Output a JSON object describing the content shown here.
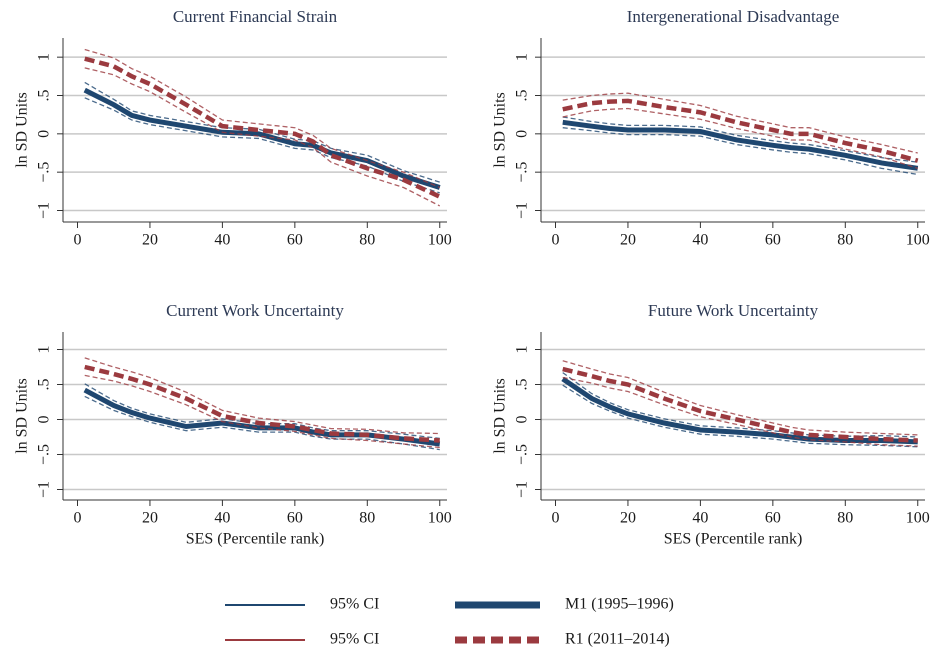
{
  "ci_label": "95% CI",
  "chart_data": [
    {
      "type": "line",
      "title": "Current Financial Strain",
      "ylabel": "ln SD Units",
      "x": [
        2,
        10,
        15,
        20,
        30,
        40,
        50,
        60,
        65,
        70,
        80,
        90,
        100
      ],
      "xlim": [
        -4,
        102
      ],
      "xticks": [
        0,
        20,
        40,
        60,
        80,
        100
      ],
      "ylim": [
        -1.15,
        1.25
      ],
      "yticks": [
        {
          "value": -1,
          "label": "−1"
        },
        {
          "value": -0.5,
          "label": "−.5"
        },
        0,
        {
          "value": 0.5,
          "label": ".5"
        },
        1
      ],
      "grid": true,
      "series": [
        {
          "name": "M1 (1995–1996)",
          "color": "#1f4770",
          "values": [
            0.57,
            0.38,
            0.24,
            0.18,
            0.1,
            0.02,
            0.0,
            -0.13,
            -0.15,
            -0.25,
            -0.35,
            -0.55,
            -0.7
          ],
          "lower": [
            0.47,
            0.31,
            0.18,
            0.12,
            0.04,
            -0.04,
            -0.06,
            -0.19,
            -0.21,
            -0.31,
            -0.42,
            -0.62,
            -0.77
          ],
          "upper": [
            0.67,
            0.45,
            0.3,
            0.24,
            0.16,
            0.08,
            0.06,
            -0.07,
            -0.09,
            -0.19,
            -0.28,
            -0.48,
            -0.63
          ]
        },
        {
          "name": "R1 (2011–2014)",
          "color": "#9b3a3f",
          "values": [
            0.98,
            0.88,
            0.75,
            0.65,
            0.38,
            0.1,
            0.05,
            0.0,
            -0.1,
            -0.28,
            -0.45,
            -0.6,
            -0.82
          ],
          "lower": [
            0.86,
            0.77,
            0.65,
            0.55,
            0.28,
            0.02,
            -0.03,
            -0.08,
            -0.18,
            -0.37,
            -0.55,
            -0.7,
            -0.94
          ],
          "upper": [
            1.1,
            0.99,
            0.85,
            0.75,
            0.48,
            0.18,
            0.13,
            0.08,
            -0.02,
            -0.19,
            -0.35,
            -0.5,
            -0.7
          ]
        }
      ]
    },
    {
      "type": "line",
      "title": "Intergenerational Disadvantage",
      "ylabel": "ln SD Units",
      "x": [
        2,
        10,
        15,
        20,
        30,
        40,
        50,
        60,
        65,
        70,
        80,
        90,
        100
      ],
      "xlim": [
        -4,
        102
      ],
      "xticks": [
        0,
        20,
        40,
        60,
        80,
        100
      ],
      "ylim": [
        -1.15,
        1.25
      ],
      "yticks": [
        {
          "value": -1,
          "label": "−1"
        },
        {
          "value": -0.5,
          "label": "−.5"
        },
        0,
        {
          "value": 0.5,
          "label": ".5"
        },
        1
      ],
      "grid": true,
      "series": [
        {
          "name": "M1 (1995–1996)",
          "color": "#1f4770",
          "values": [
            0.15,
            0.1,
            0.07,
            0.05,
            0.05,
            0.03,
            -0.08,
            -0.15,
            -0.18,
            -0.2,
            -0.28,
            -0.38,
            -0.45
          ],
          "lower": [
            0.08,
            0.04,
            0.01,
            -0.01,
            -0.01,
            -0.03,
            -0.14,
            -0.21,
            -0.24,
            -0.26,
            -0.34,
            -0.45,
            -0.53
          ],
          "upper": [
            0.22,
            0.16,
            0.13,
            0.11,
            0.11,
            0.09,
            -0.02,
            -0.09,
            -0.12,
            -0.14,
            -0.22,
            -0.31,
            -0.37
          ]
        },
        {
          "name": "R1 (2011–2014)",
          "color": "#9b3a3f",
          "values": [
            0.32,
            0.4,
            0.42,
            0.43,
            0.35,
            0.28,
            0.15,
            0.05,
            0.0,
            0.0,
            -0.12,
            -0.22,
            -0.35
          ],
          "lower": [
            0.22,
            0.3,
            0.32,
            0.33,
            0.26,
            0.19,
            0.07,
            -0.03,
            -0.08,
            -0.08,
            -0.2,
            -0.3,
            -0.45
          ],
          "upper": [
            0.44,
            0.5,
            0.52,
            0.53,
            0.45,
            0.37,
            0.23,
            0.13,
            0.08,
            0.08,
            -0.04,
            -0.14,
            -0.25
          ]
        }
      ]
    },
    {
      "type": "line",
      "title": "Current Work Uncertainty",
      "ylabel": "ln SD Units",
      "xlabel": "SES (Percentile rank)",
      "x": [
        2,
        10,
        15,
        20,
        30,
        40,
        50,
        60,
        65,
        70,
        80,
        90,
        100
      ],
      "xlim": [
        -4,
        102
      ],
      "xticks": [
        0,
        20,
        40,
        60,
        80,
        100
      ],
      "ylim": [
        -1.15,
        1.25
      ],
      "yticks": [
        {
          "value": -1,
          "label": "−1"
        },
        {
          "value": -0.5,
          "label": "−.5"
        },
        0,
        {
          "value": 0.5,
          "label": ".5"
        },
        1
      ],
      "grid": true,
      "series": [
        {
          "name": "M1 (1995–1996)",
          "color": "#1f4770",
          "values": [
            0.42,
            0.2,
            0.1,
            0.02,
            -0.1,
            -0.05,
            -0.12,
            -0.12,
            -0.18,
            -0.22,
            -0.22,
            -0.28,
            -0.35
          ],
          "lower": [
            0.33,
            0.13,
            0.04,
            -0.04,
            -0.16,
            -0.11,
            -0.18,
            -0.18,
            -0.24,
            -0.28,
            -0.28,
            -0.35,
            -0.43
          ],
          "upper": [
            0.51,
            0.27,
            0.16,
            0.08,
            -0.04,
            0.01,
            -0.06,
            -0.06,
            -0.12,
            -0.16,
            -0.16,
            -0.21,
            -0.27
          ]
        },
        {
          "name": "R1 (2011–2014)",
          "color": "#9b3a3f",
          "values": [
            0.75,
            0.65,
            0.58,
            0.5,
            0.3,
            0.05,
            -0.05,
            -0.1,
            -0.15,
            -0.2,
            -0.22,
            -0.27,
            -0.3
          ],
          "lower": [
            0.63,
            0.55,
            0.48,
            0.4,
            0.21,
            -0.03,
            -0.12,
            -0.17,
            -0.22,
            -0.27,
            -0.3,
            -0.35,
            -0.4
          ],
          "upper": [
            0.88,
            0.75,
            0.68,
            0.6,
            0.39,
            0.13,
            0.02,
            -0.03,
            -0.08,
            -0.13,
            -0.14,
            -0.19,
            -0.2
          ]
        }
      ]
    },
    {
      "type": "line",
      "title": "Future Work Uncertainty",
      "ylabel": "ln SD Units",
      "xlabel": "SES (Percentile rank)",
      "x": [
        2,
        10,
        15,
        20,
        30,
        40,
        50,
        60,
        65,
        70,
        80,
        90,
        100
      ],
      "xlim": [
        -4,
        102
      ],
      "xticks": [
        0,
        20,
        40,
        60,
        80,
        100
      ],
      "ylim": [
        -1.15,
        1.25
      ],
      "yticks": [
        {
          "value": -1,
          "label": "−1"
        },
        {
          "value": -0.5,
          "label": "−.5"
        },
        0,
        {
          "value": 0.5,
          "label": ".5"
        },
        1
      ],
      "grid": true,
      "series": [
        {
          "name": "M1 (1995–1996)",
          "color": "#1f4770",
          "values": [
            0.58,
            0.3,
            0.18,
            0.08,
            -0.05,
            -0.15,
            -0.18,
            -0.22,
            -0.25,
            -0.28,
            -0.3,
            -0.3,
            -0.32
          ],
          "lower": [
            0.49,
            0.23,
            0.12,
            0.02,
            -0.11,
            -0.21,
            -0.24,
            -0.28,
            -0.31,
            -0.34,
            -0.36,
            -0.37,
            -0.39
          ],
          "upper": [
            0.67,
            0.37,
            0.24,
            0.14,
            0.01,
            -0.09,
            -0.12,
            -0.16,
            -0.19,
            -0.22,
            -0.24,
            -0.23,
            -0.25
          ]
        },
        {
          "name": "R1 (2011–2014)",
          "color": "#9b3a3f",
          "values": [
            0.72,
            0.62,
            0.55,
            0.5,
            0.3,
            0.12,
            0.0,
            -0.12,
            -0.18,
            -0.22,
            -0.25,
            -0.28,
            -0.3
          ],
          "lower": [
            0.6,
            0.52,
            0.45,
            0.4,
            0.21,
            0.04,
            -0.07,
            -0.19,
            -0.25,
            -0.29,
            -0.32,
            -0.36,
            -0.38
          ],
          "upper": [
            0.84,
            0.72,
            0.65,
            0.6,
            0.39,
            0.2,
            0.07,
            -0.05,
            -0.11,
            -0.15,
            -0.18,
            -0.2,
            -0.22
          ]
        }
      ]
    }
  ]
}
